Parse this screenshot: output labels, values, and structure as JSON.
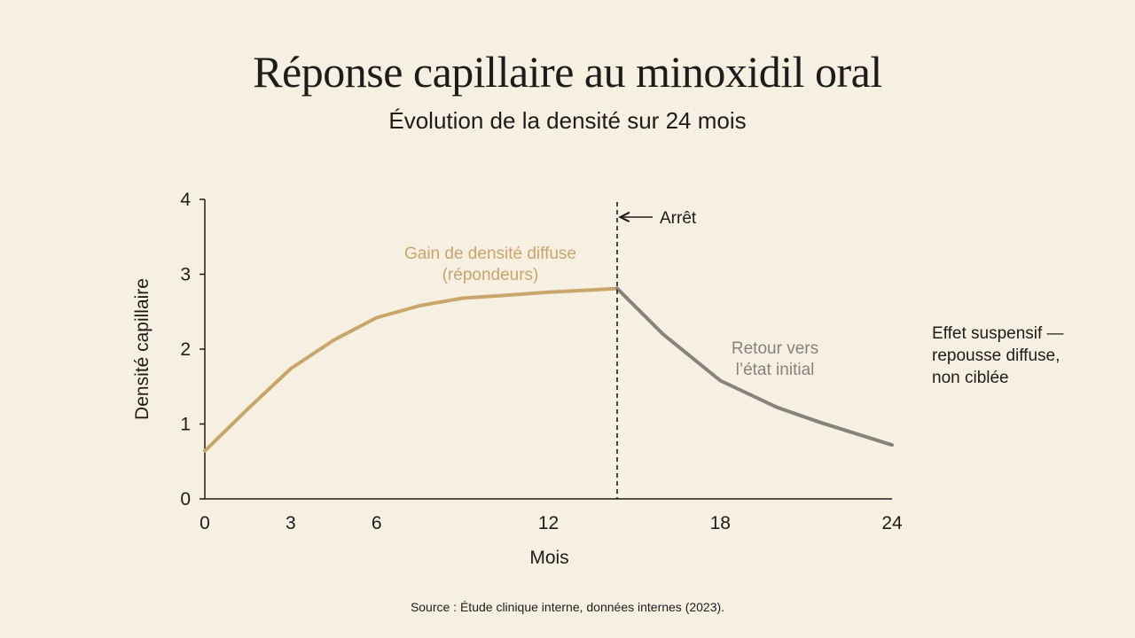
{
  "title": "Réponse capillaire au minoxidil oral",
  "subtitle": "Évolution de la densité sur 24 mois",
  "source": "Source : Étude clinique interne, données internes (2023).",
  "side_note": [
    "Effet suspensif —",
    "repousse diffuse,",
    "non ciblée"
  ],
  "colors": {
    "background": "#f6f0e3",
    "gain": "#c9a56a",
    "return": "#86837d",
    "text": "#1e1c19"
  },
  "chart_data": {
    "type": "line",
    "xlabel": "Mois",
    "ylabel": "Densité capillaire",
    "xlim": [
      0,
      24
    ],
    "ylim": [
      0,
      4
    ],
    "x_ticks": [
      0,
      3,
      6,
      12,
      18,
      24
    ],
    "y_ticks": [
      0,
      1,
      2,
      3,
      4
    ],
    "grid": false,
    "series": [
      {
        "name": "Gain de densité diffuse (répondeurs)",
        "label_lines": [
          "Gain de densité diffuse",
          "(répondeurs)"
        ],
        "color": "#c9a56a",
        "x": [
          0,
          1.5,
          3,
          4.5,
          6,
          7.5,
          9,
          10.5,
          12,
          13.5,
          14.4
        ],
        "y": [
          0.64,
          1.2,
          1.74,
          2.12,
          2.42,
          2.58,
          2.68,
          2.72,
          2.76,
          2.79,
          2.81
        ]
      },
      {
        "name": "Retour vers l’état initial",
        "label_lines": [
          "Retour vers",
          "l’état initial"
        ],
        "color": "#86837d",
        "x": [
          14.4,
          16,
          18,
          20,
          21.5,
          24
        ],
        "y": [
          2.81,
          2.2,
          1.58,
          1.22,
          1.02,
          0.72
        ]
      }
    ],
    "annotations": [
      {
        "type": "vline",
        "x": 14.4,
        "label": "Arrêt",
        "style": "dashed"
      }
    ]
  }
}
